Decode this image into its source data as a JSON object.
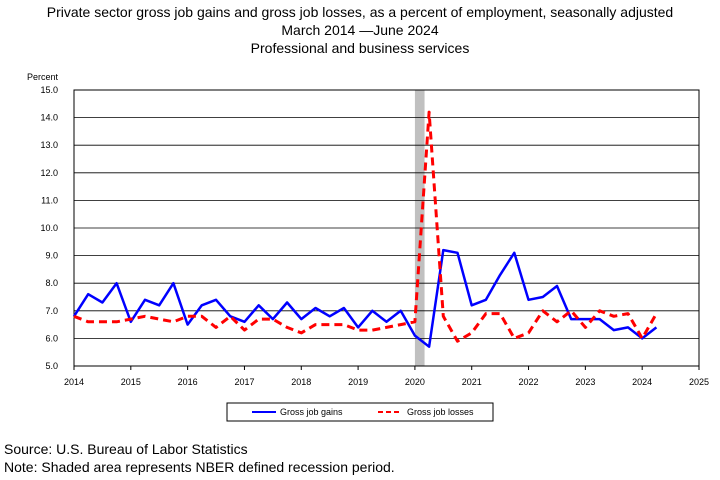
{
  "chart_data": {
    "type": "line",
    "title": "Private sector gross job gains and gross job losses, as a percent of employment, seasonally adjusted",
    "subtitle_dates": "March 2014 —June 2024",
    "subtitle_industry": "Professional and business services",
    "ylabel": "Percent",
    "ylim": [
      5.0,
      15.0
    ],
    "xlim": [
      2014,
      2025
    ],
    "y_ticks": [
      "5.0",
      "6.0",
      "7.0",
      "8.0",
      "9.0",
      "10.0",
      "11.0",
      "12.0",
      "13.0",
      "14.0",
      "15.0"
    ],
    "x_ticks": [
      "2014",
      "2015",
      "2016",
      "2017",
      "2018",
      "2019",
      "2020",
      "2021",
      "2022",
      "2023",
      "2024",
      "2025"
    ],
    "grid": "horizontal",
    "recession_shade": {
      "start": 2020.0,
      "end": 2020.17
    },
    "legend_position": "bottom",
    "series": [
      {
        "name": "Gross job gains",
        "color": "#0000ff",
        "style": "solid",
        "x": [
          "2014-Q1",
          "2014-Q2",
          "2014-Q3",
          "2014-Q4",
          "2015-Q1",
          "2015-Q2",
          "2015-Q3",
          "2015-Q4",
          "2016-Q1",
          "2016-Q2",
          "2016-Q3",
          "2016-Q4",
          "2017-Q1",
          "2017-Q2",
          "2017-Q3",
          "2017-Q4",
          "2018-Q1",
          "2018-Q2",
          "2018-Q3",
          "2018-Q4",
          "2019-Q1",
          "2019-Q2",
          "2019-Q3",
          "2019-Q4",
          "2020-Q1",
          "2020-Q2",
          "2020-Q3",
          "2020-Q4",
          "2021-Q1",
          "2021-Q2",
          "2021-Q3",
          "2021-Q4",
          "2022-Q1",
          "2022-Q2",
          "2022-Q3",
          "2022-Q4",
          "2023-Q1",
          "2023-Q2",
          "2023-Q3",
          "2023-Q4",
          "2024-Q1",
          "2024-Q2"
        ],
        "values": [
          6.8,
          7.6,
          7.3,
          8.0,
          6.6,
          7.4,
          7.2,
          8.0,
          6.5,
          7.2,
          7.4,
          6.8,
          6.6,
          7.2,
          6.7,
          7.3,
          6.7,
          7.1,
          6.8,
          7.1,
          6.4,
          7.0,
          6.6,
          7.0,
          6.1,
          5.7,
          9.2,
          9.1,
          7.2,
          7.4,
          8.3,
          9.1,
          7.4,
          7.5,
          7.9,
          6.7,
          6.7,
          6.7,
          6.3,
          6.4,
          6.0,
          6.4
        ]
      },
      {
        "name": "Gross job losses",
        "color": "#ff0000",
        "style": "dashed",
        "x": [
          "2014-Q1",
          "2014-Q2",
          "2014-Q3",
          "2014-Q4",
          "2015-Q1",
          "2015-Q2",
          "2015-Q3",
          "2015-Q4",
          "2016-Q1",
          "2016-Q2",
          "2016-Q3",
          "2016-Q4",
          "2017-Q1",
          "2017-Q2",
          "2017-Q3",
          "2017-Q4",
          "2018-Q1",
          "2018-Q2",
          "2018-Q3",
          "2018-Q4",
          "2019-Q1",
          "2019-Q2",
          "2019-Q3",
          "2019-Q4",
          "2020-Q1",
          "2020-Q2",
          "2020-Q3",
          "2020-Q4",
          "2021-Q1",
          "2021-Q2",
          "2021-Q3",
          "2021-Q4",
          "2022-Q1",
          "2022-Q2",
          "2022-Q3",
          "2022-Q4",
          "2023-Q1",
          "2023-Q2",
          "2023-Q3",
          "2023-Q4",
          "2024-Q1",
          "2024-Q2"
        ],
        "values": [
          6.8,
          6.6,
          6.6,
          6.6,
          6.7,
          6.8,
          6.7,
          6.6,
          6.8,
          6.8,
          6.4,
          6.8,
          6.3,
          6.7,
          6.7,
          6.4,
          6.2,
          6.5,
          6.5,
          6.5,
          6.3,
          6.3,
          6.4,
          6.5,
          6.6,
          14.2,
          6.8,
          5.9,
          6.2,
          6.9,
          6.9,
          6.0,
          6.2,
          7.0,
          6.6,
          7.0,
          6.4,
          7.0,
          6.8,
          6.9,
          6.0,
          6.9
        ]
      }
    ]
  },
  "footer": {
    "source": "Source: U.S. Bureau of Labor Statistics",
    "note": "Note: Shaded area represents NBER defined recession period."
  }
}
